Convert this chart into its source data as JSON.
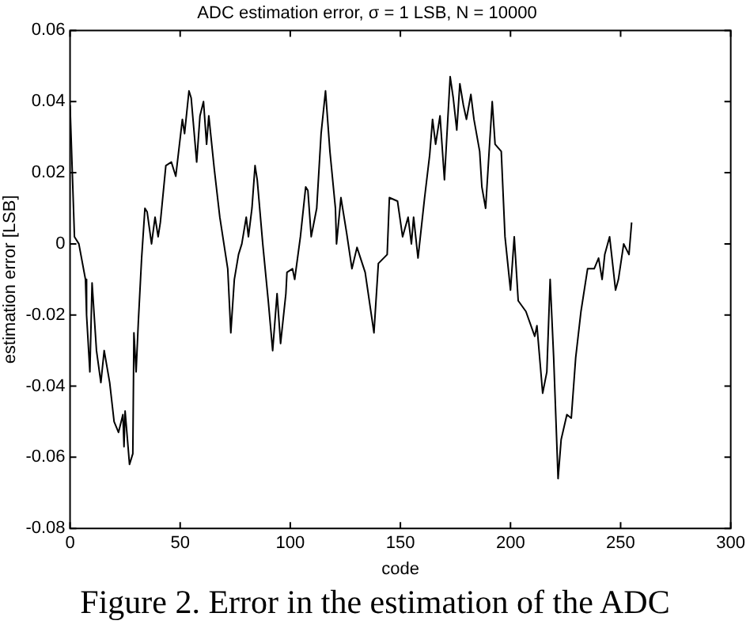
{
  "chart_data": {
    "type": "line",
    "title": "ADC estimation error, σ = 1 LSB, N = 10000",
    "xlabel": "code",
    "ylabel": "estimation error [LSB]",
    "xlim": [
      0,
      300
    ],
    "xticks": [
      0,
      50,
      100,
      150,
      200,
      250,
      300
    ],
    "ylim": [
      -0.08,
      0.06
    ],
    "yticks": [
      -0.08,
      -0.06,
      -0.04,
      -0.02,
      0,
      0.02,
      0.04,
      0.06
    ],
    "grid": false,
    "legend": false,
    "marker": "none",
    "line_style": "solid",
    "annotations": [
      "Figure 2. Error in the estimation of the ADC"
    ],
    "series": [
      {
        "color": "#000000",
        "x": [
          0,
          2,
          4,
          7,
          7.5,
          9,
          10,
          12,
          14,
          15.5,
          18,
          20,
          22,
          24,
          24.5,
          25,
          27,
          28.5,
          29,
          30,
          31,
          32,
          32.5,
          34,
          35,
          37,
          38.6,
          40,
          41,
          43.5,
          46,
          48,
          51,
          52,
          54,
          55,
          57.5,
          59,
          60.6,
          62,
          63,
          65.5,
          68,
          71.6,
          73,
          74.6,
          76.5,
          78,
          80,
          81,
          82.6,
          84,
          85,
          87.5,
          90,
          92,
          94,
          95.6,
          98,
          98.5,
          101,
          102,
          104.6,
          107,
          108,
          109.5,
          112,
          114,
          116,
          118,
          120.5,
          121,
          123,
          125.6,
          128,
          130.3,
          134,
          138,
          140,
          144,
          145,
          148.7,
          151,
          153.5,
          155,
          156,
          158,
          161,
          163.3,
          164.6,
          166,
          168,
          170,
          172.6,
          174,
          175.6,
          177,
          178.6,
          180,
          182,
          183.4,
          186,
          187,
          188.7,
          191.7,
          193,
          195.8,
          197.5,
          200,
          201.7,
          203.5,
          207,
          211,
          212,
          214.6,
          216.5,
          218,
          219.6,
          221.6,
          223,
          225.6,
          227.6,
          229.6,
          232,
          235,
          238,
          240,
          241.6,
          242.8,
          245,
          247.7,
          249,
          251.4,
          253.8,
          255
        ],
        "values": [
          0.039,
          0.002,
          0,
          -0.01,
          -0.02,
          -0.036,
          -0.011,
          -0.03,
          -0.039,
          -0.03,
          -0.039,
          -0.05,
          -0.053,
          -0.048,
          -0.057,
          -0.047,
          -0.062,
          -0.059,
          -0.025,
          -0.036,
          -0.022,
          -0.01,
          -0.004,
          0.01,
          0.009,
          0,
          0.0075,
          0.002,
          0.006,
          0.022,
          0.023,
          0.019,
          0.035,
          0.031,
          0.043,
          0.041,
          0.023,
          0.036,
          0.04,
          0.028,
          0.036,
          0.021,
          0.0075,
          -0.007,
          -0.025,
          -0.01,
          -0.003,
          0,
          0.0075,
          0.002,
          0.01,
          0.022,
          0.018,
          0,
          -0.016,
          -0.03,
          -0.014,
          -0.028,
          -0.014,
          -0.008,
          -0.007,
          -0.01,
          0.002,
          0.016,
          0.015,
          0.002,
          0.01,
          0.031,
          0.043,
          0.026,
          0.01,
          0,
          0.013,
          0.003,
          -0.007,
          -0.001,
          -0.008,
          -0.025,
          -0.0055,
          -0.003,
          0.013,
          0.012,
          0.002,
          0.0075,
          0,
          0.0075,
          -0.004,
          0.013,
          0.025,
          0.035,
          0.028,
          0.036,
          0.018,
          0.047,
          0.041,
          0.032,
          0.045,
          0.039,
          0.035,
          0.042,
          0.035,
          0.026,
          0.016,
          0.01,
          0.04,
          0.028,
          0.026,
          0.002,
          -0.013,
          0.002,
          -0.016,
          -0.019,
          -0.026,
          -0.023,
          -0.042,
          -0.036,
          -0.01,
          -0.032,
          -0.066,
          -0.055,
          -0.048,
          -0.049,
          -0.032,
          -0.019,
          -0.007,
          -0.007,
          -0.004,
          -0.01,
          -0.003,
          0.002,
          -0.013,
          -0.01,
          0,
          -0.003,
          0.006
        ]
      }
    ]
  }
}
